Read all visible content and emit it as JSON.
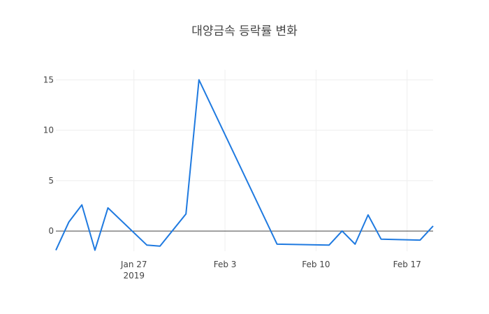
{
  "chart_data": {
    "type": "line",
    "title": "대양금속 등락률 변화",
    "xlabel": "",
    "ylabel": "",
    "x_axis": {
      "type": "date",
      "range": [
        "2019-01-21",
        "2019-02-19"
      ],
      "ticks": [
        {
          "date": "2019-01-27",
          "label": "Jan 27",
          "sublabel": "2019"
        },
        {
          "date": "2019-02-03",
          "label": "Feb 3",
          "sublabel": ""
        },
        {
          "date": "2019-02-10",
          "label": "Feb 10",
          "sublabel": ""
        },
        {
          "date": "2019-02-17",
          "label": "Feb 17",
          "sublabel": ""
        }
      ]
    },
    "y_axis": {
      "range": [
        -2,
        16
      ],
      "ticks": [
        0,
        5,
        10,
        15
      ]
    },
    "grid": true,
    "series": [
      {
        "color": "#1f7ae0",
        "points": [
          {
            "x": "2019-01-21",
            "y": -1.9
          },
          {
            "x": "2019-01-22",
            "y": 0.9
          },
          {
            "x": "2019-01-23",
            "y": 2.6
          },
          {
            "x": "2019-01-24",
            "y": -1.9
          },
          {
            "x": "2019-01-25",
            "y": 2.3
          },
          {
            "x": "2019-01-28",
            "y": -1.4
          },
          {
            "x": "2019-01-29",
            "y": -1.5
          },
          {
            "x": "2019-01-31",
            "y": 1.7
          },
          {
            "x": "2019-02-01",
            "y": 15.0
          },
          {
            "x": "2019-02-07",
            "y": -1.3
          },
          {
            "x": "2019-02-11",
            "y": -1.4
          },
          {
            "x": "2019-02-12",
            "y": 0.0
          },
          {
            "x": "2019-02-13",
            "y": -1.3
          },
          {
            "x": "2019-02-14",
            "y": 1.6
          },
          {
            "x": "2019-02-15",
            "y": -0.8
          },
          {
            "x": "2019-02-18",
            "y": -0.9
          },
          {
            "x": "2019-02-19",
            "y": 0.5
          }
        ]
      }
    ]
  }
}
